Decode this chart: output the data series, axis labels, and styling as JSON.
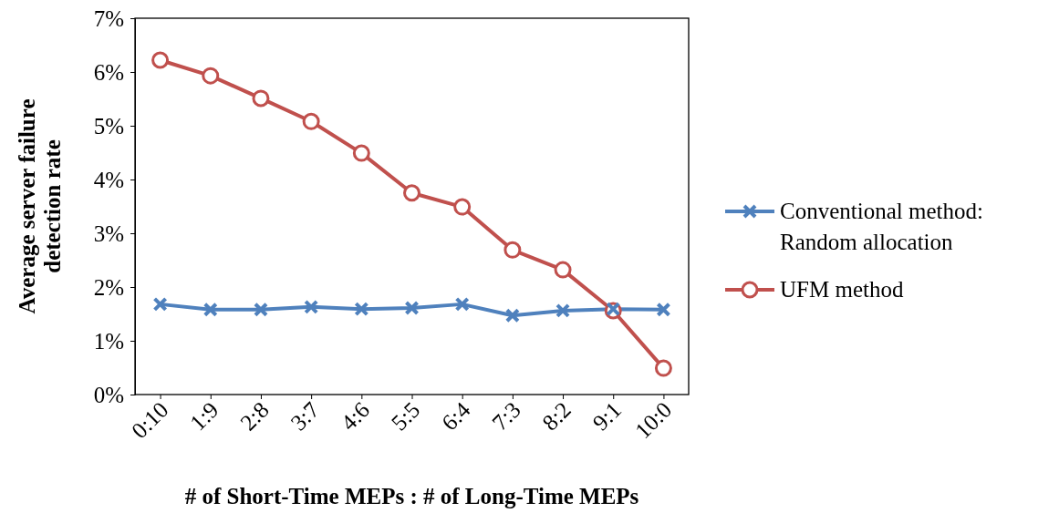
{
  "chart_data": {
    "type": "line",
    "xlabel": "# of Short-Time MEPs : # of Long-Time MEPs",
    "ylabel": "Average server failure detection rate",
    "categories": [
      "0:10",
      "1:9",
      "2:8",
      "3:7",
      "4:6",
      "5:5",
      "6:4",
      "7:3",
      "8:2",
      "9:1",
      "10:0"
    ],
    "series": [
      {
        "name": "Conventional method: Random allocation",
        "color": "#4f81bd",
        "marker": "cross",
        "values": [
          1.68,
          1.58,
          1.58,
          1.63,
          1.59,
          1.61,
          1.68,
          1.47,
          1.56,
          1.59,
          1.58
        ]
      },
      {
        "name": "UFM method",
        "color": "#c0504d",
        "marker": "circle",
        "values": [
          6.22,
          5.93,
          5.51,
          5.08,
          4.49,
          3.75,
          3.49,
          2.69,
          2.32,
          1.56,
          0.49
        ]
      }
    ],
    "ylim": [
      0,
      7
    ],
    "yticks": [
      {
        "value": 0,
        "label": "0%"
      },
      {
        "value": 1,
        "label": "1%"
      },
      {
        "value": 2,
        "label": "2%"
      },
      {
        "value": 3,
        "label": "3%"
      },
      {
        "value": 4,
        "label": "4%"
      },
      {
        "value": 5,
        "label": "5%"
      },
      {
        "value": 6,
        "label": "6%"
      },
      {
        "value": 7,
        "label": "7%"
      }
    ],
    "grid": false,
    "legend": "right",
    "line_style": "solid"
  }
}
